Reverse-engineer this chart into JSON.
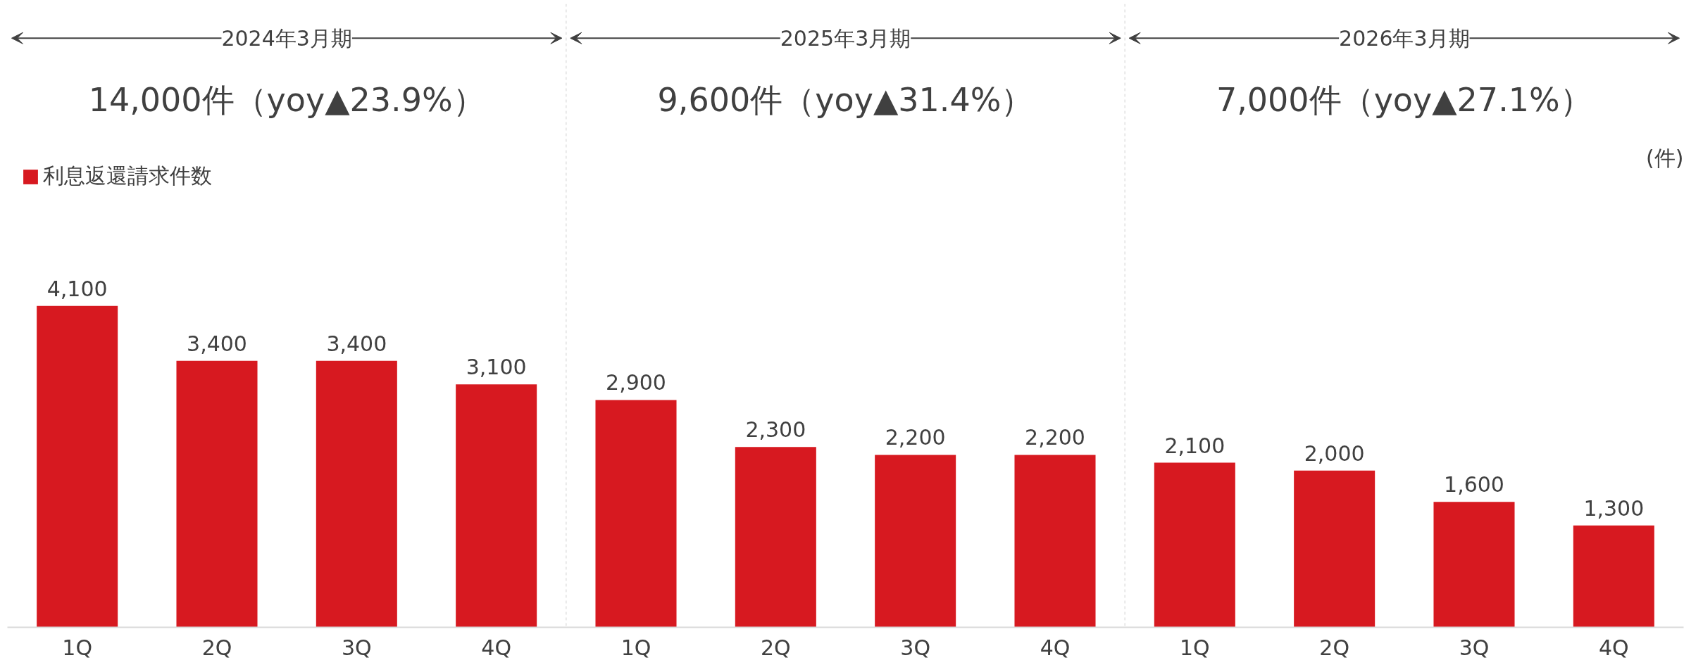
{
  "chart_data": {
    "type": "bar",
    "categories": [
      "1Q",
      "2Q",
      "3Q",
      "4Q",
      "1Q",
      "2Q",
      "3Q",
      "4Q",
      "1Q",
      "2Q",
      "3Q",
      "4Q"
    ],
    "series": [
      {
        "name": "利息返還請求件数",
        "color": "#d71920",
        "values": [
          4100,
          3400,
          3400,
          3100,
          2900,
          2300,
          2200,
          2200,
          2100,
          2000,
          1600,
          1300
        ],
        "value_labels": [
          "4,100",
          "3,400",
          "3,400",
          "3,100",
          "2,900",
          "2,300",
          "2,200",
          "2,200",
          "2,100",
          "2,000",
          "1,600",
          "1,300"
        ]
      }
    ],
    "legend": "top left",
    "grid": false,
    "annotations": [
      "2024年3月期",
      "2025年3月期",
      "2026年3月期",
      "14,000件（yoy▲23.9%）",
      "9,600件（yoy▲31.4%）",
      "7,000件（yoy▲27.1%）",
      "(件)"
    ]
  }
}
